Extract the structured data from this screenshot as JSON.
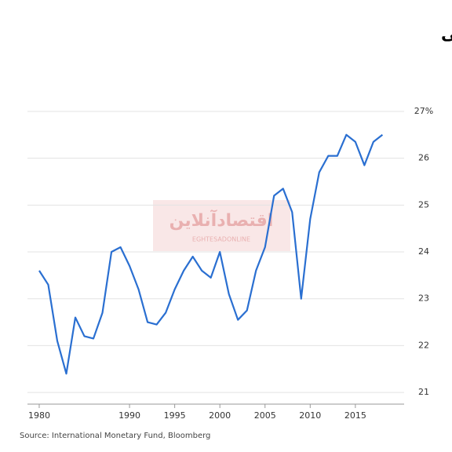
{
  "chart_data": {
    "type": "line",
    "title": "میزان پس‌انداز جهانی، بر اساس درصد تولید ناخالص داخلی",
    "source": "Source: International Monetary Fund, Bloomberg",
    "watermark": "اقتصادآنلاین",
    "watermark_sub": "EGHTESADONLINE",
    "x": [
      1980,
      1981,
      1982,
      1983,
      1984,
      1985,
      1986,
      1987,
      1988,
      1989,
      1990,
      1991,
      1992,
      1993,
      1994,
      1995,
      1996,
      1997,
      1998,
      1999,
      2000,
      2001,
      2002,
      2003,
      2004,
      2005,
      2006,
      2007,
      2008,
      2009,
      2010,
      2011,
      2012,
      2013,
      2014,
      2015,
      2016,
      2017,
      2018
    ],
    "series": [
      {
        "color": "#2a6fd1",
        "values": [
          23.6,
          23.3,
          22.1,
          21.4,
          22.6,
          22.2,
          22.15,
          22.7,
          24.0,
          24.1,
          23.7,
          23.2,
          22.5,
          22.45,
          22.7,
          23.2,
          23.6,
          23.9,
          23.6,
          23.45,
          24.0,
          23.1,
          22.55,
          22.75,
          23.6,
          24.1,
          25.2,
          25.35,
          24.85,
          23.0,
          24.7,
          25.7,
          26.05,
          26.05,
          26.5,
          26.35,
          25.85,
          26.35,
          26.5
        ]
      }
    ],
    "xlim": [
      1978.7,
      2020.4
    ],
    "xticks": [
      1980,
      1990,
      1995,
      2000,
      2005,
      2010,
      2015
    ],
    "ylim": [
      20.75,
      27.2
    ],
    "yticks": [
      21,
      22,
      23,
      24,
      25,
      26,
      {
        "value": 27,
        "label": "27%"
      }
    ],
    "grid": true
  }
}
